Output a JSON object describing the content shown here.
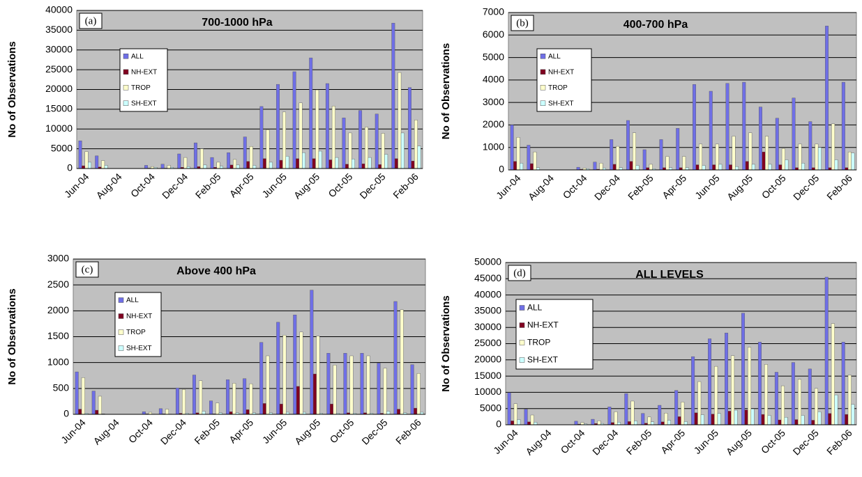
{
  "chart_data": [
    {
      "type": "bar",
      "title": "700-1000 hPa",
      "panel_label": "(a)",
      "y_label": "No of Observations",
      "categories": [
        "Jun-04",
        null,
        "Aug-04",
        null,
        "Oct-04",
        null,
        "Dec-04",
        null,
        "Feb-05",
        null,
        "Apr-05",
        null,
        "Jun-05",
        null,
        "Aug-05",
        null,
        "Oct-05",
        null,
        "Dec-05",
        null,
        "Feb-06"
      ],
      "series": [
        {
          "name": "ALL",
          "color": "#6f6fe6",
          "values": [
            7000,
            3200,
            0,
            0,
            800,
            1100,
            3700,
            6500,
            2800,
            4000,
            8000,
            15700,
            21300,
            24500,
            28000,
            21500,
            12800,
            14700,
            13800,
            36800,
            20500
          ]
        },
        {
          "name": "NH-EXT",
          "color": "#800020",
          "values": [
            700,
            400,
            0,
            0,
            100,
            100,
            300,
            500,
            300,
            900,
            1800,
            2500,
            2100,
            2500,
            2500,
            2200,
            1100,
            1200,
            1000,
            2500,
            1900
          ]
        },
        {
          "name": "TROP",
          "color": "#ffffcc",
          "values": [
            4300,
            2000,
            0,
            0,
            500,
            800,
            2800,
            5000,
            1600,
            2300,
            5600,
            9800,
            14300,
            16600,
            19900,
            15800,
            9000,
            10500,
            8900,
            24300,
            12300
          ]
        },
        {
          "name": "SH-EXT",
          "color": "#ccffff",
          "values": [
            1600,
            800,
            0,
            0,
            300,
            300,
            500,
            900,
            600,
            900,
            800,
            1600,
            3100,
            4000,
            4400,
            2800,
            2400,
            2800,
            3600,
            9000,
            5700
          ]
        }
      ],
      "ylim": [
        0,
        40000
      ],
      "yticks": [
        0,
        5000,
        10000,
        15000,
        20000,
        25000,
        30000,
        35000,
        40000
      ],
      "grid": true
    },
    {
      "type": "bar",
      "title": "400-700 hPa",
      "panel_label": "(b)",
      "y_label": "No of Observations",
      "categories": [
        "Jun-04",
        null,
        "Aug-04",
        null,
        "Oct-04",
        null,
        "Dec-04",
        null,
        "Feb-05",
        null,
        "Apr-05",
        null,
        "Jun-05",
        null,
        "Aug-05",
        null,
        "Oct-05",
        null,
        "Dec-05",
        null,
        "Feb-06"
      ],
      "series": [
        {
          "name": "ALL",
          "color": "#6f6fe6",
          "values": [
            2000,
            1100,
            0,
            0,
            120,
            350,
            1350,
            2200,
            900,
            1350,
            1850,
            3800,
            3500,
            3850,
            3900,
            2800,
            2300,
            3200,
            2150,
            6400,
            3900
          ]
        },
        {
          "name": "NH-EXT",
          "color": "#800020",
          "values": [
            380,
            280,
            0,
            0,
            30,
            30,
            250,
            380,
            100,
            100,
            100,
            230,
            230,
            230,
            380,
            800,
            230,
            100,
            100,
            100,
            100
          ]
        },
        {
          "name": "TROP",
          "color": "#ffffcc",
          "values": [
            1450,
            800,
            0,
            0,
            80,
            300,
            1050,
            1650,
            250,
            600,
            600,
            1150,
            1150,
            1500,
            1650,
            1500,
            950,
            1150,
            1150,
            2050,
            800
          ]
        },
        {
          "name": "SH-EXT",
          "color": "#ccffff",
          "values": [
            300,
            100,
            0,
            0,
            50,
            80,
            100,
            200,
            50,
            100,
            100,
            200,
            250,
            150,
            250,
            250,
            450,
            300,
            1000,
            450,
            750
          ]
        }
      ],
      "ylim": [
        0,
        7000
      ],
      "yticks": [
        0,
        1000,
        2000,
        3000,
        4000,
        5000,
        6000,
        7000
      ],
      "grid": true
    },
    {
      "type": "bar",
      "title": "Above 400 hPa",
      "panel_label": "(c)",
      "y_label": "No of Observations",
      "categories": [
        "Jun-04",
        null,
        "Aug-04",
        null,
        "Oct-04",
        null,
        "Dec-04",
        null,
        "Feb-05",
        null,
        "Apr-05",
        null,
        "Jun-05",
        null,
        "Aug-05",
        null,
        "Oct-05",
        null,
        "Dec-05",
        null,
        "Feb-06"
      ],
      "series": [
        {
          "name": "ALL",
          "color": "#6f6fe6",
          "values": [
            820,
            450,
            0,
            0,
            50,
            110,
            510,
            760,
            260,
            670,
            690,
            1390,
            1780,
            1920,
            2400,
            1180,
            1180,
            1180,
            990,
            2180,
            960
          ]
        },
        {
          "name": "NH-EXT",
          "color": "#800020",
          "values": [
            100,
            80,
            0,
            0,
            10,
            10,
            20,
            30,
            10,
            50,
            90,
            210,
            200,
            540,
            780,
            200,
            30,
            30,
            20,
            100,
            120
          ]
        },
        {
          "name": "TROP",
          "color": "#ffffcc",
          "values": [
            710,
            350,
            0,
            0,
            40,
            100,
            480,
            650,
            220,
            600,
            590,
            1130,
            1530,
            1590,
            1510,
            950,
            1130,
            1130,
            890,
            2020,
            790
          ]
        },
        {
          "name": "SH-EXT",
          "color": "#ccffff",
          "values": [
            20,
            10,
            0,
            0,
            5,
            5,
            20,
            60,
            30,
            30,
            30,
            30,
            40,
            40,
            20,
            20,
            20,
            20,
            60,
            30,
            40
          ]
        }
      ],
      "ylim": [
        0,
        3000
      ],
      "yticks": [
        0,
        500,
        1000,
        1500,
        2000,
        2500,
        3000
      ],
      "grid": true
    },
    {
      "type": "bar",
      "title": "ALL LEVELS",
      "panel_label": "(d)",
      "y_label": "No of Observations",
      "categories": [
        "Jun-04",
        null,
        "Aug-04",
        null,
        "Oct-04",
        null,
        "Dec-04",
        null,
        "Feb-05",
        null,
        "Apr-05",
        null,
        "Jun-05",
        null,
        "Aug-05",
        null,
        "Oct-05",
        null,
        "Dec-05",
        null,
        "Feb-06"
      ],
      "series": [
        {
          "name": "ALL",
          "color": "#6f6fe6",
          "values": [
            9900,
            4800,
            0,
            0,
            1100,
            1700,
            5500,
            9600,
            3500,
            6000,
            10600,
            21000,
            26500,
            28300,
            34400,
            25500,
            16200,
            19200,
            17200,
            45500,
            25500
          ]
        },
        {
          "name": "NH-EXT",
          "color": "#800020",
          "values": [
            1200,
            900,
            0,
            0,
            200,
            400,
            700,
            1000,
            500,
            900,
            2500,
            3700,
            3300,
            4200,
            4600,
            3200,
            1500,
            1600,
            1400,
            3500,
            3200
          ]
        },
        {
          "name": "TROP",
          "color": "#ffffcc",
          "values": [
            6500,
            3000,
            0,
            0,
            700,
            1200,
            4000,
            7300,
            2400,
            3600,
            7000,
            13300,
            18000,
            21300,
            23900,
            18600,
            12000,
            14000,
            11200,
            31200,
            15300
          ]
        },
        {
          "name": "SH-EXT",
          "color": "#ccffff",
          "values": [
            1600,
            800,
            0,
            0,
            300,
            400,
            800,
            1200,
            900,
            1400,
            1000,
            3100,
            3500,
            4500,
            4900,
            2900,
            2300,
            2900,
            4000,
            9200,
            6300
          ]
        }
      ],
      "ylim": [
        0,
        50000
      ],
      "yticks": [
        0,
        5000,
        10000,
        15000,
        20000,
        25000,
        30000,
        35000,
        40000,
        45000,
        50000
      ],
      "grid": true
    }
  ]
}
